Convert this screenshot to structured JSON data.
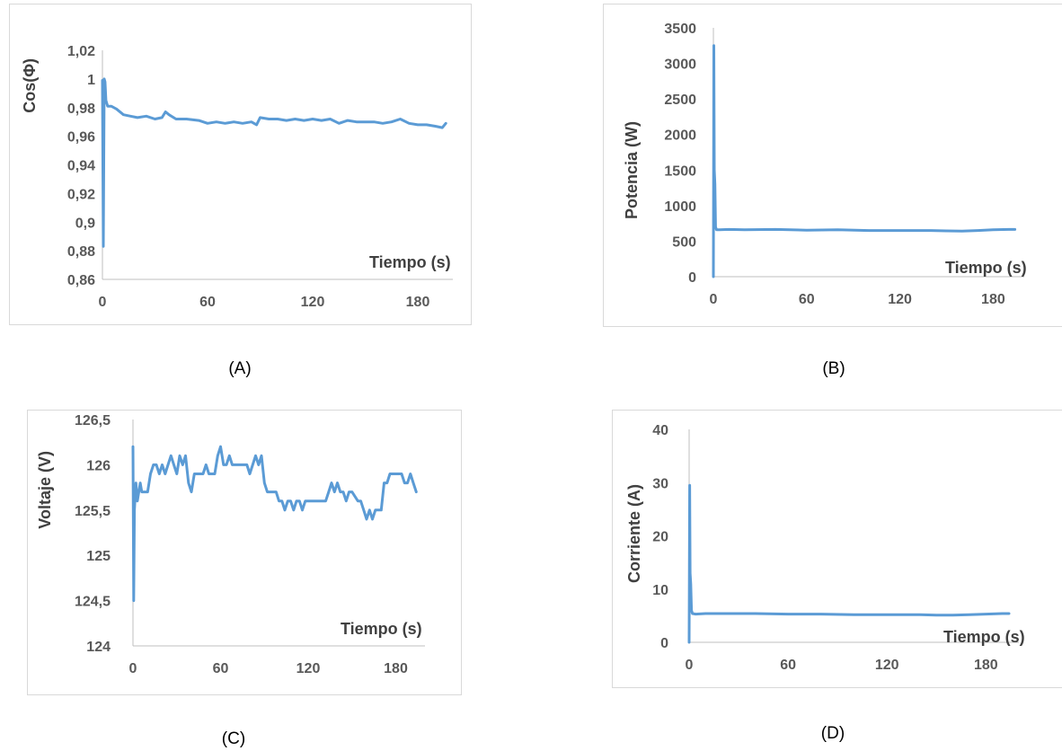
{
  "chart_data": [
    {
      "id": "A",
      "type": "line",
      "caption": "(A)",
      "ylabel": "Cos(Φ)",
      "xlabel": "Tiempo (s)",
      "xlim": [
        0,
        200
      ],
      "ylim": [
        0.86,
        1.02
      ],
      "xticks": [
        0,
        60,
        120,
        180
      ],
      "xtick_labels": [
        "0",
        "60",
        "120",
        "180"
      ],
      "yticks": [
        0.86,
        0.88,
        0.9,
        0.92,
        0.94,
        0.96,
        0.98,
        1,
        1.02
      ],
      "ytick_labels": [
        "0,86",
        "0,88",
        "0,9",
        "0,92",
        "0,94",
        "0,96",
        "0,98",
        "1",
        "1,02"
      ],
      "grid": false,
      "color": "#5b9bd5",
      "x": [
        0,
        0.5,
        1,
        1.5,
        2,
        3,
        5,
        8,
        12,
        16,
        20,
        25,
        30,
        34,
        36,
        38,
        42,
        48,
        55,
        60,
        65,
        70,
        75,
        80,
        85,
        88,
        90,
        95,
        100,
        105,
        110,
        115,
        120,
        125,
        130,
        135,
        140,
        145,
        150,
        155,
        160,
        165,
        170,
        175,
        180,
        185,
        190,
        194,
        196
      ],
      "y": [
        0.999,
        0.883,
        1.0,
        0.998,
        0.985,
        0.981,
        0.981,
        0.979,
        0.975,
        0.974,
        0.973,
        0.974,
        0.972,
        0.973,
        0.977,
        0.975,
        0.972,
        0.972,
        0.971,
        0.969,
        0.97,
        0.969,
        0.97,
        0.969,
        0.97,
        0.968,
        0.973,
        0.972,
        0.972,
        0.971,
        0.972,
        0.971,
        0.972,
        0.971,
        0.972,
        0.969,
        0.971,
        0.97,
        0.97,
        0.97,
        0.969,
        0.97,
        0.972,
        0.969,
        0.968,
        0.968,
        0.967,
        0.966,
        0.969
      ]
    },
    {
      "id": "B",
      "type": "line",
      "caption": "(B)",
      "ylabel": "Potencia (W)",
      "xlabel": "Tiempo (s)",
      "xlim": [
        0,
        200
      ],
      "ylim": [
        0,
        3500
      ],
      "xticks": [
        0,
        60,
        120,
        180
      ],
      "xtick_labels": [
        "0",
        "60",
        "120",
        "180"
      ],
      "yticks": [
        0,
        500,
        1000,
        1500,
        2000,
        2500,
        3000,
        3500
      ],
      "ytick_labels": [
        "0",
        "500",
        "1000",
        "1500",
        "2000",
        "2500",
        "3000",
        "3500"
      ],
      "grid": false,
      "color": "#5b9bd5",
      "x": [
        0,
        0.3,
        0.6,
        1,
        1.4,
        2,
        4,
        10,
        20,
        40,
        60,
        80,
        100,
        120,
        140,
        150,
        160,
        170,
        180,
        190,
        194
      ],
      "y": [
        0,
        3250,
        1500,
        1300,
        700,
        660,
        660,
        665,
        660,
        665,
        655,
        660,
        650,
        650,
        650,
        645,
        640,
        650,
        660,
        665,
        665
      ]
    },
    {
      "id": "C",
      "type": "line",
      "caption": "(C)",
      "ylabel": "Voltaje (V)",
      "xlabel": "Tiempo (s)",
      "xlim": [
        0,
        200
      ],
      "ylim": [
        124,
        126.5
      ],
      "xticks": [
        0,
        60,
        120,
        180
      ],
      "xtick_labels": [
        "0",
        "60",
        "120",
        "180"
      ],
      "yticks": [
        124,
        124.5,
        125,
        125.5,
        126,
        126.5
      ],
      "ytick_labels": [
        "124",
        "124,5",
        "125",
        "125,5",
        "126",
        "126,5"
      ],
      "grid": false,
      "color": "#5b9bd5",
      "x": [
        0,
        0.5,
        1,
        2,
        3,
        5,
        6,
        8,
        9,
        10,
        12,
        14,
        16,
        18,
        20,
        22,
        24,
        26,
        28,
        30,
        32,
        34,
        36,
        38,
        40,
        42,
        44,
        46,
        48,
        50,
        52,
        54,
        56,
        58,
        60,
        62,
        64,
        66,
        68,
        70,
        72,
        74,
        76,
        78,
        80,
        84,
        86,
        88,
        90,
        92,
        94,
        96,
        98,
        100,
        102,
        104,
        106,
        108,
        110,
        112,
        114,
        116,
        118,
        120,
        124,
        128,
        132,
        134,
        136,
        138,
        140,
        142,
        144,
        146,
        148,
        150,
        154,
        156,
        158,
        160,
        162,
        164,
        166,
        168,
        170,
        172,
        174,
        176,
        178,
        180,
        184,
        186,
        188,
        190,
        192,
        194
      ],
      "y": [
        126.2,
        124.5,
        125.5,
        125.8,
        125.6,
        125.8,
        125.7,
        125.7,
        125.7,
        125.7,
        125.9,
        126.0,
        126.0,
        125.9,
        126.0,
        125.9,
        126.0,
        126.1,
        126.0,
        125.9,
        126.1,
        126.0,
        126.1,
        125.8,
        125.7,
        125.9,
        125.9,
        125.9,
        125.9,
        126.0,
        125.9,
        125.9,
        125.9,
        126.1,
        126.2,
        126.0,
        126.0,
        126.1,
        126.0,
        126.0,
        126.0,
        126.0,
        126.0,
        126.0,
        125.9,
        126.1,
        126.0,
        126.1,
        125.8,
        125.7,
        125.7,
        125.7,
        125.7,
        125.6,
        125.6,
        125.5,
        125.6,
        125.6,
        125.5,
        125.6,
        125.6,
        125.5,
        125.6,
        125.6,
        125.6,
        125.6,
        125.6,
        125.7,
        125.8,
        125.7,
        125.8,
        125.7,
        125.7,
        125.6,
        125.7,
        125.7,
        125.6,
        125.6,
        125.5,
        125.4,
        125.5,
        125.4,
        125.5,
        125.5,
        125.5,
        125.8,
        125.8,
        125.9,
        125.9,
        125.9,
        125.9,
        125.8,
        125.8,
        125.9,
        125.8,
        125.7
      ]
    },
    {
      "id": "D",
      "type": "line",
      "caption": "(D)",
      "ylabel": "Corriente (A)",
      "xlabel": "Tiempo (s)",
      "xlim": [
        0,
        200
      ],
      "ylim": [
        0,
        40
      ],
      "xticks": [
        0,
        60,
        120,
        180
      ],
      "xtick_labels": [
        "0",
        "60",
        "120",
        "180"
      ],
      "yticks": [
        0,
        10,
        20,
        30,
        40
      ],
      "ytick_labels": [
        "0",
        "10",
        "20",
        "30",
        "40"
      ],
      "grid": false,
      "color": "#5b9bd5",
      "x": [
        0,
        0.3,
        0.6,
        1,
        1.4,
        2,
        4,
        10,
        20,
        40,
        60,
        80,
        100,
        120,
        140,
        150,
        160,
        170,
        180,
        190,
        194
      ],
      "y": [
        0,
        29.5,
        13,
        11,
        6,
        5.4,
        5.3,
        5.4,
        5.4,
        5.4,
        5.3,
        5.3,
        5.2,
        5.2,
        5.2,
        5.1,
        5.1,
        5.2,
        5.3,
        5.4,
        5.4
      ]
    }
  ]
}
